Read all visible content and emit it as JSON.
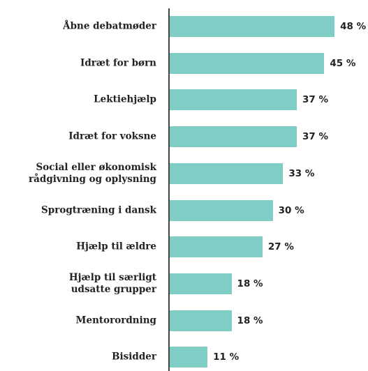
{
  "chart_data": {
    "type": "bar",
    "orientation": "horizontal",
    "categories": [
      "Åbne debatmøder",
      "Idræt for børn",
      "Lektiehjælp",
      "Idræt for voksne",
      "Social eller økonomisk\nrådgivning og oplysning",
      "Sprogtræning i dansk",
      "Hjælp til ældre",
      "Hjælp til særligt\nudsatte grupper",
      "Mentorordning",
      "Bisidder"
    ],
    "values": [
      48,
      45,
      37,
      37,
      33,
      30,
      27,
      18,
      18,
      11
    ],
    "value_labels": [
      "48 %",
      "45 %",
      "37 %",
      "37 %",
      "33 %",
      "30 %",
      "27 %",
      "18 %",
      "18 %",
      "11 %"
    ],
    "color": "#7fcec5"
  }
}
